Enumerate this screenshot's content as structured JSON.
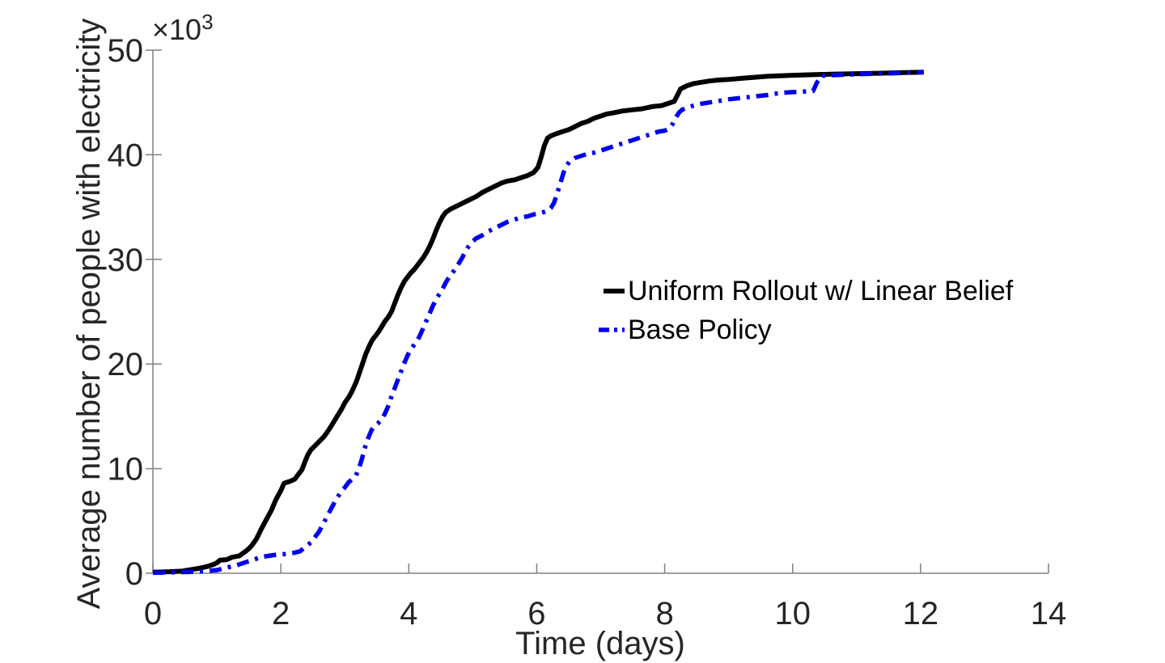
{
  "figure": {
    "background_color": "#ffffff",
    "axis_color": "#808080",
    "tick_label_color": "#262626",
    "offset": {
      "base": "×10",
      "exp": "3"
    }
  },
  "chart_data": {
    "type": "line",
    "title": "",
    "xlabel": "Time (days)",
    "ylabel": "Average number of people with electricity",
    "y_offset_label": "×10^3",
    "y_units": "thousands of people",
    "xlim": [
      0,
      14
    ],
    "ylim": [
      0,
      50
    ],
    "x_ticks": [
      0,
      2,
      4,
      6,
      8,
      10,
      12,
      14
    ],
    "y_ticks": [
      0,
      10,
      20,
      30,
      40,
      50
    ],
    "grid": false,
    "legend_position": "center-right, no box",
    "series": [
      {
        "name": "Uniform Rollout w/ Linear Belief",
        "color": "#000000",
        "line_style": "solid",
        "line_width": 6,
        "points": [
          [
            0,
            0.1
          ],
          [
            0.25,
            0.15
          ],
          [
            0.45,
            0.2
          ],
          [
            0.55,
            0.3
          ],
          [
            0.65,
            0.4
          ],
          [
            0.75,
            0.5
          ],
          [
            0.85,
            0.65
          ],
          [
            0.95,
            0.85
          ],
          [
            1.0,
            1.0
          ],
          [
            1.05,
            1.25
          ],
          [
            1.15,
            1.3
          ],
          [
            1.25,
            1.55
          ],
          [
            1.35,
            1.65
          ],
          [
            1.45,
            2.1
          ],
          [
            1.5,
            2.35
          ],
          [
            1.55,
            2.7
          ],
          [
            1.62,
            3.3
          ],
          [
            1.7,
            4.3
          ],
          [
            1.78,
            5.2
          ],
          [
            1.85,
            6.0
          ],
          [
            1.92,
            7.0
          ],
          [
            2.0,
            7.9
          ],
          [
            2.05,
            8.6
          ],
          [
            2.15,
            8.8
          ],
          [
            2.22,
            9.0
          ],
          [
            2.28,
            9.5
          ],
          [
            2.33,
            9.9
          ],
          [
            2.38,
            10.7
          ],
          [
            2.42,
            11.3
          ],
          [
            2.47,
            11.8
          ],
          [
            2.52,
            12.1
          ],
          [
            2.6,
            12.6
          ],
          [
            2.68,
            13.1
          ],
          [
            2.75,
            13.7
          ],
          [
            2.82,
            14.4
          ],
          [
            2.88,
            15.0
          ],
          [
            2.95,
            15.7
          ],
          [
            3.0,
            16.3
          ],
          [
            3.07,
            16.9
          ],
          [
            3.12,
            17.5
          ],
          [
            3.18,
            18.3
          ],
          [
            3.23,
            19.2
          ],
          [
            3.28,
            20.1
          ],
          [
            3.33,
            21.0
          ],
          [
            3.38,
            21.7
          ],
          [
            3.43,
            22.3
          ],
          [
            3.48,
            22.7
          ],
          [
            3.53,
            23.1
          ],
          [
            3.58,
            23.6
          ],
          [
            3.63,
            24.1
          ],
          [
            3.68,
            24.5
          ],
          [
            3.73,
            25.0
          ],
          [
            3.78,
            25.8
          ],
          [
            3.83,
            26.6
          ],
          [
            3.88,
            27.3
          ],
          [
            3.93,
            27.9
          ],
          [
            3.98,
            28.3
          ],
          [
            4.03,
            28.7
          ],
          [
            4.08,
            29.0
          ],
          [
            4.13,
            29.4
          ],
          [
            4.18,
            29.8
          ],
          [
            4.23,
            30.2
          ],
          [
            4.28,
            30.7
          ],
          [
            4.33,
            31.3
          ],
          [
            4.38,
            32.0
          ],
          [
            4.43,
            32.8
          ],
          [
            4.48,
            33.5
          ],
          [
            4.53,
            34.1
          ],
          [
            4.58,
            34.5
          ],
          [
            4.65,
            34.8
          ],
          [
            4.75,
            35.1
          ],
          [
            4.85,
            35.4
          ],
          [
            4.95,
            35.7
          ],
          [
            5.05,
            36.0
          ],
          [
            5.15,
            36.4
          ],
          [
            5.25,
            36.7
          ],
          [
            5.35,
            37.0
          ],
          [
            5.45,
            37.3
          ],
          [
            5.55,
            37.5
          ],
          [
            5.65,
            37.6
          ],
          [
            5.75,
            37.8
          ],
          [
            5.85,
            38.0
          ],
          [
            5.95,
            38.3
          ],
          [
            6.02,
            38.8
          ],
          [
            6.07,
            39.8
          ],
          [
            6.12,
            40.9
          ],
          [
            6.17,
            41.6
          ],
          [
            6.22,
            41.8
          ],
          [
            6.3,
            42.0
          ],
          [
            6.4,
            42.2
          ],
          [
            6.5,
            42.4
          ],
          [
            6.6,
            42.7
          ],
          [
            6.7,
            43.0
          ],
          [
            6.8,
            43.2
          ],
          [
            6.9,
            43.5
          ],
          [
            7.0,
            43.7
          ],
          [
            7.1,
            43.9
          ],
          [
            7.2,
            44.0
          ],
          [
            7.35,
            44.2
          ],
          [
            7.5,
            44.3
          ],
          [
            7.65,
            44.4
          ],
          [
            7.8,
            44.6
          ],
          [
            7.95,
            44.7
          ],
          [
            8.05,
            44.9
          ],
          [
            8.15,
            45.1
          ],
          [
            8.2,
            45.7
          ],
          [
            8.25,
            46.3
          ],
          [
            8.35,
            46.6
          ],
          [
            8.45,
            46.8
          ],
          [
            8.55,
            46.9
          ],
          [
            8.7,
            47.05
          ],
          [
            8.85,
            47.15
          ],
          [
            9.0,
            47.2
          ],
          [
            9.2,
            47.3
          ],
          [
            9.4,
            47.4
          ],
          [
            9.6,
            47.5
          ],
          [
            9.8,
            47.55
          ],
          [
            10.0,
            47.6
          ],
          [
            10.3,
            47.65
          ],
          [
            10.6,
            47.7
          ],
          [
            11.0,
            47.75
          ],
          [
            11.4,
            47.8
          ],
          [
            11.75,
            47.85
          ],
          [
            12.05,
            47.9
          ]
        ]
      },
      {
        "name": "Base Policy",
        "color": "#0000ee",
        "line_style": "dash-dot",
        "line_width": 5.5,
        "points": [
          [
            0,
            0.05
          ],
          [
            0.4,
            0.1
          ],
          [
            0.7,
            0.15
          ],
          [
            0.9,
            0.25
          ],
          [
            1.0,
            0.3
          ],
          [
            1.1,
            0.45
          ],
          [
            1.2,
            0.6
          ],
          [
            1.3,
            0.75
          ],
          [
            1.4,
            0.95
          ],
          [
            1.5,
            1.15
          ],
          [
            1.6,
            1.35
          ],
          [
            1.7,
            1.55
          ],
          [
            1.8,
            1.65
          ],
          [
            1.9,
            1.75
          ],
          [
            2.0,
            1.8
          ],
          [
            2.1,
            1.85
          ],
          [
            2.2,
            1.95
          ],
          [
            2.3,
            2.1
          ],
          [
            2.36,
            2.4
          ],
          [
            2.42,
            2.7
          ],
          [
            2.48,
            3.0
          ],
          [
            2.54,
            3.5
          ],
          [
            2.6,
            4.0
          ],
          [
            2.66,
            4.7
          ],
          [
            2.72,
            5.4
          ],
          [
            2.78,
            6.1
          ],
          [
            2.85,
            6.9
          ],
          [
            2.92,
            7.6
          ],
          [
            3.0,
            8.2
          ],
          [
            3.06,
            8.7
          ],
          [
            3.12,
            9.0
          ],
          [
            3.17,
            9.3
          ],
          [
            3.22,
            10.0
          ],
          [
            3.27,
            11.0
          ],
          [
            3.32,
            12.1
          ],
          [
            3.37,
            13.0
          ],
          [
            3.42,
            13.7
          ],
          [
            3.47,
            14.1
          ],
          [
            3.53,
            14.4
          ],
          [
            3.58,
            14.7
          ],
          [
            3.63,
            15.3
          ],
          [
            3.68,
            16.0
          ],
          [
            3.73,
            16.9
          ],
          [
            3.78,
            17.7
          ],
          [
            3.83,
            18.5
          ],
          [
            3.88,
            19.3
          ],
          [
            3.93,
            20.1
          ],
          [
            3.98,
            20.8
          ],
          [
            4.03,
            21.4
          ],
          [
            4.08,
            21.8
          ],
          [
            4.13,
            22.2
          ],
          [
            4.18,
            22.8
          ],
          [
            4.23,
            23.5
          ],
          [
            4.28,
            24.2
          ],
          [
            4.33,
            24.9
          ],
          [
            4.38,
            25.6
          ],
          [
            4.43,
            26.2
          ],
          [
            4.48,
            26.7
          ],
          [
            4.53,
            27.2
          ],
          [
            4.58,
            27.8
          ],
          [
            4.63,
            28.3
          ],
          [
            4.68,
            28.7
          ],
          [
            4.73,
            29.1
          ],
          [
            4.78,
            29.6
          ],
          [
            4.83,
            30.1
          ],
          [
            4.88,
            30.7
          ],
          [
            4.93,
            31.2
          ],
          [
            4.98,
            31.6
          ],
          [
            5.05,
            32.0
          ],
          [
            5.15,
            32.3
          ],
          [
            5.25,
            32.7
          ],
          [
            5.35,
            33.0
          ],
          [
            5.45,
            33.3
          ],
          [
            5.55,
            33.6
          ],
          [
            5.65,
            33.8
          ],
          [
            5.75,
            34.0
          ],
          [
            5.85,
            34.1
          ],
          [
            5.95,
            34.3
          ],
          [
            6.05,
            34.4
          ],
          [
            6.15,
            34.6
          ],
          [
            6.22,
            34.9
          ],
          [
            6.27,
            35.4
          ],
          [
            6.32,
            36.3
          ],
          [
            6.37,
            37.3
          ],
          [
            6.42,
            38.3
          ],
          [
            6.47,
            39.0
          ],
          [
            6.52,
            39.4
          ],
          [
            6.6,
            39.7
          ],
          [
            6.7,
            39.9
          ],
          [
            6.8,
            40.1
          ],
          [
            6.9,
            40.2
          ],
          [
            7.0,
            40.4
          ],
          [
            7.1,
            40.6
          ],
          [
            7.2,
            40.8
          ],
          [
            7.3,
            41.0
          ],
          [
            7.4,
            41.2
          ],
          [
            7.5,
            41.4
          ],
          [
            7.6,
            41.6
          ],
          [
            7.7,
            41.8
          ],
          [
            7.8,
            42.0
          ],
          [
            7.9,
            42.2
          ],
          [
            8.0,
            42.3
          ],
          [
            8.07,
            42.5
          ],
          [
            8.12,
            42.9
          ],
          [
            8.17,
            43.5
          ],
          [
            8.22,
            44.0
          ],
          [
            8.27,
            44.3
          ],
          [
            8.35,
            44.5
          ],
          [
            8.45,
            44.7
          ],
          [
            8.55,
            44.85
          ],
          [
            8.7,
            45.0
          ],
          [
            8.85,
            45.15
          ],
          [
            9.0,
            45.3
          ],
          [
            9.15,
            45.4
          ],
          [
            9.3,
            45.5
          ],
          [
            9.45,
            45.6
          ],
          [
            9.6,
            45.7
          ],
          [
            9.75,
            45.85
          ],
          [
            9.9,
            45.95
          ],
          [
            10.05,
            46.0
          ],
          [
            10.2,
            46.05
          ],
          [
            10.32,
            46.1
          ],
          [
            10.38,
            46.9
          ],
          [
            10.45,
            47.55
          ],
          [
            10.6,
            47.6
          ],
          [
            10.8,
            47.65
          ],
          [
            11.0,
            47.7
          ],
          [
            11.3,
            47.75
          ],
          [
            11.6,
            47.8
          ],
          [
            11.8,
            47.85
          ],
          [
            12.05,
            47.9
          ]
        ]
      }
    ]
  }
}
